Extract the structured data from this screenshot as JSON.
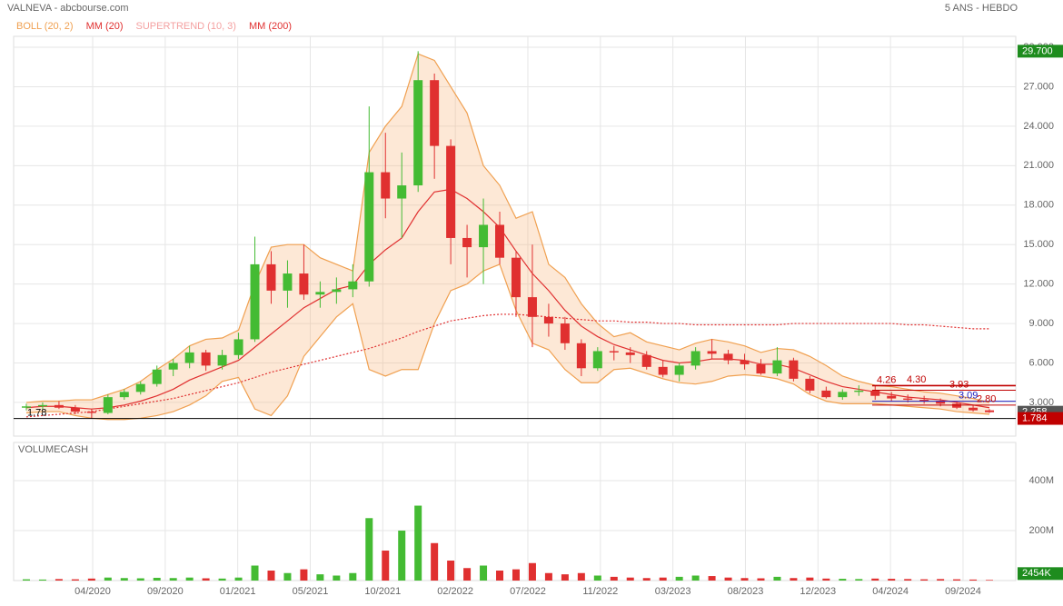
{
  "header": {
    "title": "VALNEVA - abcbourse.com",
    "period": "5 ANS - HEBDO"
  },
  "chart_data": [
    {
      "type": "candlestick",
      "legend": [
        "BOLL (20, 2)",
        "MM (20)",
        "SUPERTREND (10, 3)",
        "MM (200)"
      ],
      "legend_colors": [
        "#f0a050",
        "#e03030",
        "#f4a0a0",
        "#e03030"
      ],
      "xticks": [
        "04/2020",
        "09/2020",
        "01/2021",
        "05/2021",
        "10/2021",
        "02/2022",
        "07/2022",
        "11/2022",
        "03/2023",
        "08/2023",
        "12/2023",
        "04/2024",
        "09/2024"
      ],
      "ylim": [
        0.44,
        30.83
      ],
      "yticks": [
        {
          "value": 3,
          "label": "3.000"
        },
        {
          "value": 6,
          "label": "6.000"
        },
        {
          "value": 9,
          "label": "9.000"
        },
        {
          "value": 12,
          "label": "12.000"
        },
        {
          "value": 15,
          "label": "15.000"
        },
        {
          "value": 18,
          "label": "18.000"
        },
        {
          "value": 21,
          "label": "21.000"
        },
        {
          "value": 24,
          "label": "24.000"
        },
        {
          "value": 27,
          "label": "27.000"
        },
        {
          "value": 30,
          "label": "30.000"
        }
      ],
      "grid": true,
      "up_color": "#44bb33",
      "down_color": "#e03030",
      "open": [
        2.6,
        2.7,
        2.8,
        2.6,
        2.3,
        2.2,
        3.4,
        3.8,
        4.4,
        5.5,
        6.0,
        6.8,
        5.8,
        6.6,
        7.8,
        13.5,
        11.5,
        12.8,
        11.2,
        11.4,
        11.6,
        12.2,
        20.5,
        18.5,
        19.5,
        27.5,
        22.5,
        15.5,
        14.8,
        16.5,
        14.0,
        11.0,
        9.5,
        9.0,
        7.5,
        5.6,
        6.9,
        6.8,
        6.6,
        5.7,
        5.1,
        5.8,
        6.9,
        6.7,
        6.2,
        5.9,
        5.2,
        6.2,
        4.8,
        3.9,
        3.4,
        3.8,
        3.9,
        3.5,
        3.3,
        3.2,
        3.1,
        2.9,
        2.6,
        2.4
      ],
      "high": [
        2.9,
        3.0,
        3.1,
        2.8,
        2.5,
        3.6,
        4.0,
        4.6,
        5.8,
        6.3,
        7.3,
        7.0,
        7.0,
        8.3,
        15.6,
        14.5,
        13.8,
        15.0,
        12.2,
        12.5,
        13.5,
        25.5,
        23.5,
        22.0,
        29.7,
        28.0,
        23.0,
        16.5,
        18.5,
        17.5,
        14.5,
        15.0,
        10.5,
        9.5,
        7.8,
        7.2,
        7.3,
        7.2,
        6.9,
        6.2,
        6.0,
        7.2,
        7.8,
        7.0,
        6.7,
        6.3,
        7.2,
        6.4,
        5.0,
        4.2,
        4.0,
        4.3,
        4.3,
        3.8,
        3.6,
        3.5,
        3.3,
        3.1,
        2.8,
        2.5
      ],
      "low": [
        2.4,
        2.5,
        2.5,
        2.1,
        1.78,
        2.1,
        3.2,
        3.6,
        4.2,
        5.0,
        5.6,
        5.4,
        5.5,
        6.3,
        7.6,
        10.5,
        10.2,
        10.8,
        10.2,
        10.5,
        11.0,
        11.8,
        17.0,
        15.5,
        19.0,
        20.0,
        13.5,
        12.5,
        12.0,
        13.5,
        9.5,
        7.2,
        8.0,
        7.0,
        5.0,
        5.4,
        6.2,
        6.0,
        5.5,
        4.9,
        4.6,
        5.5,
        6.3,
        5.9,
        5.5,
        5.1,
        5.0,
        4.6,
        3.7,
        3.3,
        3.2,
        3.5,
        3.2,
        3.1,
        3.0,
        2.9,
        2.7,
        2.5,
        2.3,
        2.2
      ],
      "close": [
        2.7,
        2.8,
        2.6,
        2.3,
        2.2,
        3.4,
        3.8,
        4.4,
        5.5,
        6.0,
        6.8,
        5.8,
        6.6,
        7.8,
        13.5,
        11.5,
        12.8,
        11.2,
        11.4,
        11.6,
        12.2,
        20.5,
        18.5,
        19.5,
        27.5,
        22.5,
        15.5,
        14.8,
        16.5,
        14.0,
        11.0,
        9.5,
        9.0,
        7.5,
        5.6,
        6.9,
        6.8,
        6.6,
        5.7,
        5.1,
        5.8,
        6.9,
        6.7,
        6.2,
        5.9,
        5.2,
        6.2,
        4.8,
        3.9,
        3.4,
        3.8,
        3.9,
        3.5,
        3.3,
        3.2,
        3.1,
        2.9,
        2.6,
        2.4,
        2.258
      ],
      "boll_upper": [
        3.0,
        3.1,
        3.1,
        3.2,
        3.2,
        3.6,
        4.0,
        4.6,
        5.5,
        6.3,
        7.3,
        7.8,
        7.9,
        8.5,
        12.0,
        14.8,
        15.0,
        15.0,
        14.0,
        13.5,
        13.0,
        22.0,
        24.0,
        25.5,
        29.5,
        29.0,
        27.0,
        25.0,
        21.0,
        19.5,
        17.0,
        17.5,
        13.5,
        12.5,
        10.5,
        9.0,
        8.0,
        8.3,
        7.6,
        7.3,
        7.0,
        7.5,
        7.8,
        7.6,
        7.3,
        6.8,
        7.1,
        7.0,
        6.5,
        5.8,
        5.0,
        4.6,
        4.3,
        4.2,
        4.0,
        3.8,
        3.7,
        3.5,
        3.3,
        3.0
      ],
      "boll_lower": [
        2.2,
        2.3,
        2.3,
        2.0,
        1.8,
        1.7,
        1.7,
        1.8,
        2.0,
        2.3,
        2.8,
        3.5,
        4.6,
        4.9,
        2.5,
        2.0,
        3.5,
        6.5,
        8.0,
        9.5,
        10.5,
        5.5,
        5.0,
        5.5,
        5.5,
        9.0,
        11.5,
        12.0,
        13.0,
        13.5,
        10.0,
        7.5,
        7.0,
        5.5,
        4.5,
        4.5,
        5.5,
        5.6,
        5.2,
        4.8,
        4.5,
        4.4,
        4.6,
        5.0,
        5.1,
        5.0,
        4.8,
        4.4,
        3.6,
        3.1,
        2.9,
        2.9,
        2.9,
        2.8,
        2.7,
        2.6,
        2.5,
        2.3,
        2.2,
        2.1
      ],
      "mm20": [
        2.6,
        2.7,
        2.7,
        2.6,
        2.5,
        2.6,
        2.8,
        3.1,
        3.5,
        4.0,
        4.7,
        5.2,
        5.7,
        6.2,
        7.2,
        8.2,
        9.2,
        10.2,
        10.9,
        11.6,
        11.9,
        13.5,
        14.6,
        15.5,
        17.5,
        19.0,
        19.2,
        18.5,
        17.5,
        16.3,
        14.5,
        12.8,
        11.5,
        10.0,
        8.8,
        8.0,
        7.4,
        7.0,
        6.6,
        6.2,
        6.0,
        6.1,
        6.3,
        6.3,
        6.2,
        5.9,
        5.9,
        5.6,
        5.1,
        4.6,
        4.2,
        4.0,
        3.8,
        3.6,
        3.4,
        3.3,
        3.2,
        3.0,
        2.8,
        2.6
      ],
      "mm200": [
        1.9,
        2.0,
        2.1,
        2.2,
        2.3,
        2.5,
        2.7,
        2.9,
        3.1,
        3.3,
        3.6,
        3.9,
        4.2,
        4.5,
        4.9,
        5.3,
        5.6,
        5.9,
        6.2,
        6.5,
        6.8,
        7.1,
        7.5,
        7.9,
        8.4,
        8.8,
        9.2,
        9.4,
        9.6,
        9.7,
        9.7,
        9.6,
        9.5,
        9.4,
        9.3,
        9.2,
        9.2,
        9.1,
        9.1,
        9.0,
        9.0,
        8.9,
        8.9,
        8.9,
        8.9,
        8.9,
        8.9,
        9.0,
        9.0,
        9.0,
        9.0,
        9.0,
        9.0,
        9.0,
        8.9,
        8.9,
        8.8,
        8.7,
        8.6,
        8.6
      ],
      "levels": [
        {
          "value": 4.26,
          "label": "4.26",
          "color": "#c00000"
        },
        {
          "value": 4.3,
          "label": "4.30",
          "color": "#c00000"
        },
        {
          "value": 3.93,
          "label": "3.93",
          "color": "#c00000"
        },
        {
          "value": 3.09,
          "label": "3.09",
          "color": "#2020c0"
        },
        {
          "value": 2.8,
          "label": "2.80",
          "color": "#c00000"
        },
        {
          "value": 1.78,
          "label": "1.78",
          "color": "#000000"
        }
      ],
      "badges": [
        {
          "value": 29.7,
          "label": "29.700",
          "color": "#1e8c1e"
        },
        {
          "value": 2.258,
          "label": "2.258",
          "color": "#555555"
        },
        {
          "value": 1.784,
          "label": "1.784",
          "color": "#c00000"
        }
      ]
    },
    {
      "type": "volume",
      "title": "VOLUMECASH",
      "ylim": [
        0,
        553000000
      ],
      "yticks": [
        {
          "value": 200000000,
          "label": "200M"
        },
        {
          "value": 400000000,
          "label": "400M"
        }
      ],
      "values": [
        5000000,
        4000000,
        6000000,
        5000000,
        8000000,
        12000000,
        10000000,
        9000000,
        11000000,
        10000000,
        12000000,
        9000000,
        8000000,
        12000000,
        60000000,
        40000000,
        30000000,
        45000000,
        25000000,
        20000000,
        30000000,
        250000000,
        120000000,
        200000000,
        300000000,
        150000000,
        80000000,
        50000000,
        60000000,
        40000000,
        45000000,
        70000000,
        30000000,
        25000000,
        30000000,
        20000000,
        15000000,
        12000000,
        10000000,
        12000000,
        15000000,
        20000000,
        18000000,
        12000000,
        10000000,
        9000000,
        15000000,
        10000000,
        12000000,
        8000000,
        7000000,
        6000000,
        8000000,
        7000000,
        6000000,
        5000000,
        6000000,
        5000000,
        4000000,
        2454000
      ],
      "last": {
        "value": 2454000,
        "label": "2454K"
      }
    }
  ]
}
